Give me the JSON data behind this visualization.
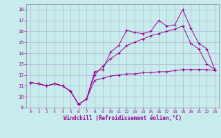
{
  "background_color": "#c8ecec",
  "grid_color": "#b0b8d8",
  "line_color": "#990099",
  "xlabel": "Windchill (Refroidissement éolien,°C)",
  "xlim": [
    -0.5,
    23.5
  ],
  "ylim": [
    9,
    18.5
  ],
  "yticks": [
    9,
    10,
    11,
    12,
    13,
    14,
    15,
    16,
    17,
    18
  ],
  "xticks": [
    0,
    1,
    2,
    3,
    4,
    5,
    6,
    7,
    8,
    9,
    10,
    11,
    12,
    13,
    14,
    15,
    16,
    17,
    18,
    19,
    20,
    21,
    22,
    23
  ],
  "series1_x": [
    0,
    1,
    2,
    3,
    4,
    5,
    6,
    7,
    8,
    9,
    10,
    11,
    12,
    13,
    14,
    15,
    16,
    17,
    18,
    19,
    20,
    21,
    22,
    23
  ],
  "series1_y": [
    11.3,
    11.2,
    11.0,
    11.2,
    11.0,
    10.5,
    9.3,
    9.8,
    12.3,
    12.5,
    14.1,
    14.7,
    16.1,
    15.9,
    15.8,
    16.0,
    17.0,
    16.5,
    16.6,
    18.0,
    16.3,
    14.9,
    14.4,
    12.5
  ],
  "series2_x": [
    0,
    1,
    2,
    3,
    4,
    5,
    6,
    7,
    8,
    9,
    10,
    11,
    12,
    13,
    14,
    15,
    16,
    17,
    18,
    19,
    20,
    21,
    22,
    23
  ],
  "series2_y": [
    11.3,
    11.2,
    11.0,
    11.2,
    11.0,
    10.5,
    9.3,
    9.8,
    12.0,
    12.8,
    13.5,
    14.0,
    14.7,
    15.0,
    15.3,
    15.6,
    15.8,
    16.0,
    16.2,
    16.5,
    14.9,
    14.4,
    13.0,
    12.5
  ],
  "series3_x": [
    0,
    1,
    2,
    3,
    4,
    5,
    6,
    7,
    8,
    9,
    10,
    11,
    12,
    13,
    14,
    15,
    16,
    17,
    18,
    19,
    20,
    21,
    22,
    23
  ],
  "series3_y": [
    11.3,
    11.2,
    11.0,
    11.2,
    11.0,
    10.5,
    9.3,
    9.8,
    11.5,
    11.7,
    11.9,
    12.0,
    12.1,
    12.1,
    12.2,
    12.2,
    12.3,
    12.3,
    12.4,
    12.5,
    12.5,
    12.5,
    12.5,
    12.4
  ]
}
